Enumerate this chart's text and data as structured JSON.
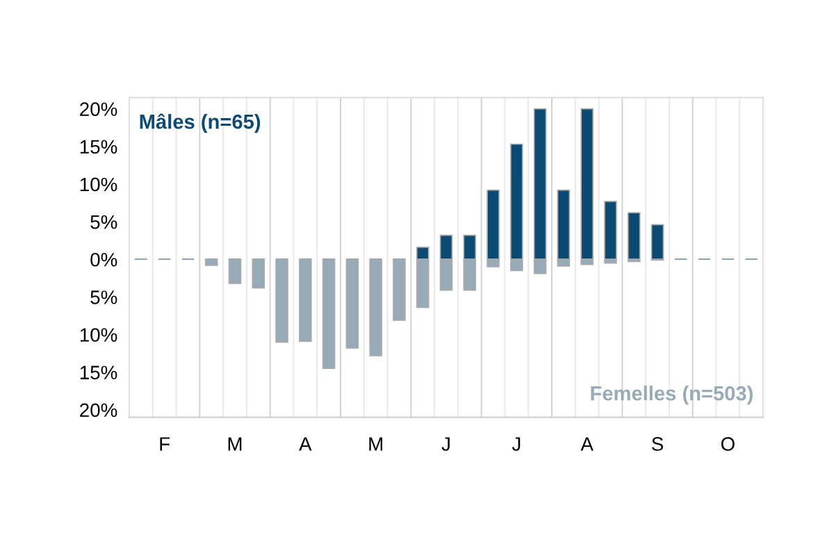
{
  "chart_data": {
    "type": "bar",
    "categories": [
      null,
      "F",
      null,
      null,
      "M",
      null,
      null,
      "A",
      null,
      null,
      "M",
      null,
      null,
      "J",
      null,
      null,
      "J",
      null,
      null,
      "A",
      null,
      null,
      "S",
      null,
      null,
      "O",
      null
    ],
    "series": [
      {
        "name": "Mâles (n=65)",
        "color": "#0b4a72",
        "values": [
          0,
          0,
          0,
          0,
          0,
          0,
          0,
          0,
          0,
          0,
          0,
          0,
          1.6,
          3.2,
          3.2,
          9.2,
          15.3,
          20,
          9.2,
          20,
          7.7,
          6.2,
          4.6,
          0,
          0,
          0,
          0
        ]
      },
      {
        "name": "Femelles (n=503)",
        "color": "#96aab8",
        "values": [
          0,
          0,
          0,
          -0.8,
          -3.2,
          -3.8,
          -11,
          -10.9,
          -14.5,
          -11.8,
          -12.8,
          -8.1,
          -6.4,
          -4.1,
          -4.1,
          -1,
          -1.5,
          -1.9,
          -0.9,
          -0.7,
          -0.5,
          -0.3,
          -0.1,
          0,
          0,
          0,
          0
        ]
      }
    ],
    "ylim": [
      -21,
      21.5
    ],
    "yticks": [
      {
        "value": -20,
        "label": "20%"
      },
      {
        "value": -15,
        "label": "15%"
      },
      {
        "value": -10,
        "label": "10%"
      },
      {
        "value": -5,
        "label": "5%"
      },
      {
        "value": 0,
        "label": "0%"
      },
      {
        "value": 5,
        "label": "5%"
      },
      {
        "value": 10,
        "label": "10%"
      },
      {
        "value": 15,
        "label": "15%"
      },
      {
        "value": 20,
        "label": "20%"
      }
    ],
    "grid": "x"
  }
}
